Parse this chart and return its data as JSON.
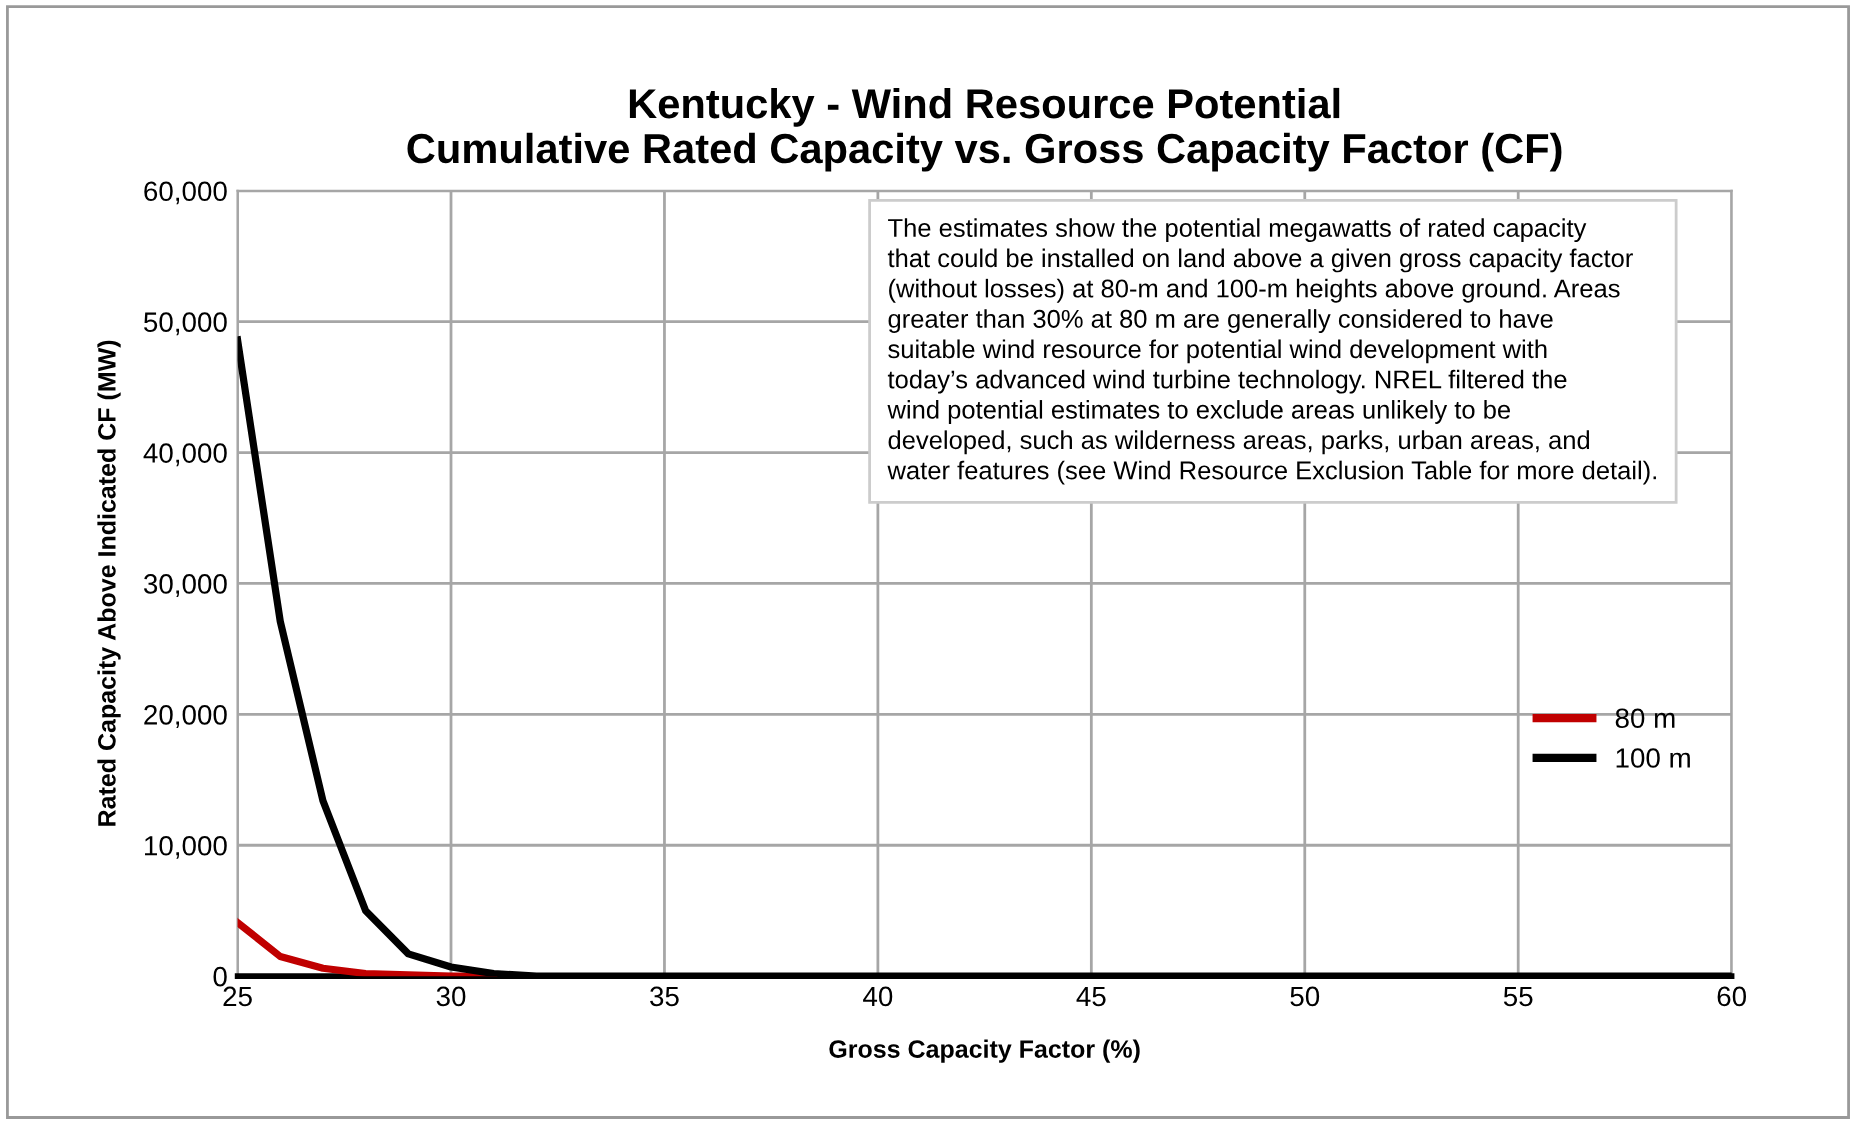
{
  "chart_data": {
    "type": "line",
    "title": "Kentucky - Wind Resource Potential\nCumulative Rated Capacity vs. Gross Capacity Factor (CF)",
    "xlabel": "Gross Capacity Factor (%)",
    "ylabel": "Rated Capacity Above Indicated CF (MW)",
    "x": [
      25,
      26,
      27,
      28,
      29,
      30,
      31,
      32,
      33,
      34,
      35,
      36,
      37,
      38,
      39,
      40,
      41,
      42,
      43,
      44,
      45,
      46,
      47,
      48,
      49,
      50,
      51,
      52,
      53,
      54,
      55,
      56,
      57,
      58,
      59,
      60
    ],
    "series": [
      {
        "name": "80 m",
        "color": "#c00000",
        "values": [
          4100,
          1500,
          600,
          200,
          100,
          0,
          0,
          null,
          null,
          null,
          null,
          null,
          null,
          null,
          null,
          null,
          null,
          null,
          null,
          null,
          null,
          null,
          null,
          null,
          null,
          null,
          null,
          null,
          null,
          null,
          null,
          null,
          null,
          null,
          null,
          null
        ]
      },
      {
        "name": "100 m",
        "color": "#000000",
        "values": [
          48600,
          27100,
          13400,
          5000,
          1700,
          700,
          200,
          0,
          0,
          0,
          0,
          0,
          0,
          0,
          0,
          0,
          0,
          0,
          0,
          0,
          0,
          0,
          0,
          0,
          0,
          0,
          0,
          0,
          0,
          0,
          0,
          0,
          0,
          0,
          0,
          0
        ]
      }
    ],
    "xlim": [
      25,
      60
    ],
    "xticks": [
      25,
      30,
      35,
      40,
      45,
      50,
      55,
      60
    ],
    "ylim": [
      0,
      60000
    ],
    "yticks": [
      {
        "value": 0,
        "label": "0"
      },
      {
        "value": 10000,
        "label": "10,000"
      },
      {
        "value": 20000,
        "label": "20,000"
      },
      {
        "value": 30000,
        "label": "30,000"
      },
      {
        "value": 40000,
        "label": "40,000"
      },
      {
        "value": 50000,
        "label": "50,000"
      },
      {
        "value": 60000,
        "label": "60,000"
      }
    ],
    "grid": true,
    "legend": "right",
    "marker": "none",
    "line_style": "solid",
    "annotations": [
      "The estimates show the potential megawatts of rated capacity\nthat could be installed on land above a given gross capacity factor\n(without losses) at 80-m and 100-m heights above ground. Areas\ngreater than 30% at 80 m are generally considered to have\nsuitable wind resource for potential wind development with\ntoday’s advanced wind turbine technology. NREL filtered the\nwind potential estimates to exclude areas unlikely to be\ndeveloped, such as wilderness areas, parks, urban areas, and\nwater features (see Wind Resource Exclusion Table for more detail)."
    ]
  }
}
